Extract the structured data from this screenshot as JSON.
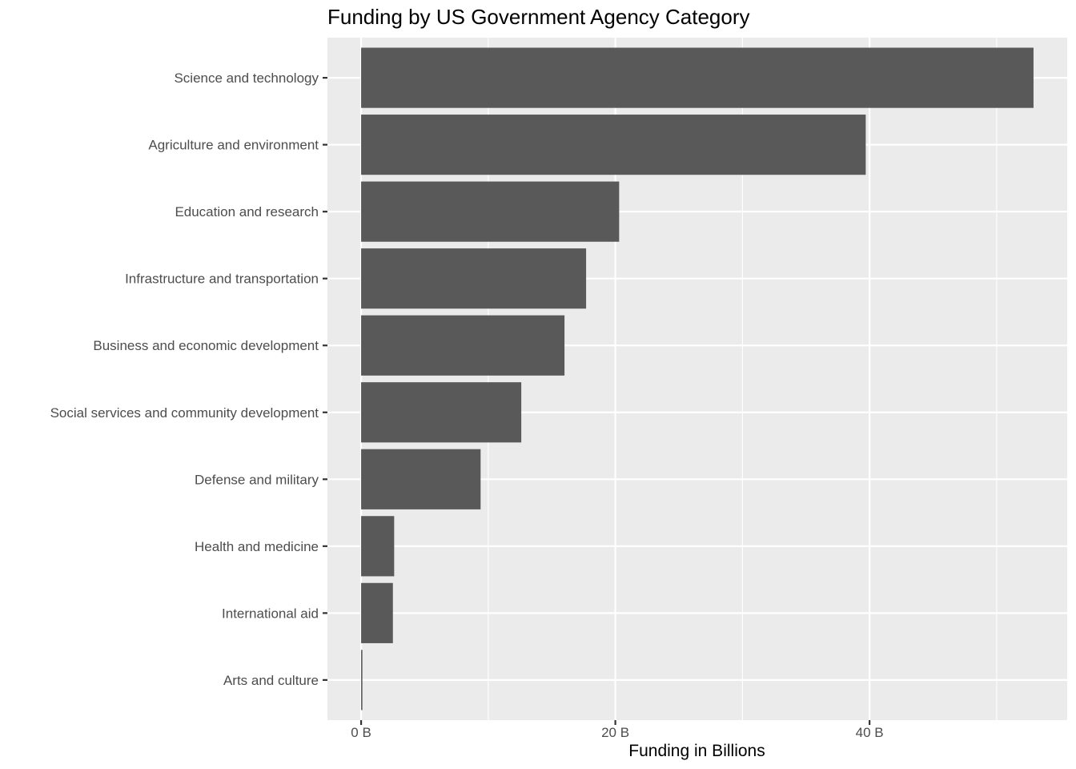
{
  "chart_data": {
    "type": "bar",
    "orientation": "horizontal",
    "title": "Funding by US Government Agency Category",
    "xlabel": "Funding in Billions",
    "ylabel": "",
    "categories": [
      "Science and technology",
      "Agriculture and environment",
      "Education and research",
      "Infrastructure and transportation",
      "Business and economic development",
      "Social services and community development",
      "Defense and military",
      "Health and medicine",
      "International aid",
      "Arts and culture"
    ],
    "values": [
      52.9,
      39.7,
      20.3,
      17.7,
      16.0,
      12.6,
      9.4,
      2.6,
      2.5,
      0.1
    ],
    "xlim": [
      -2.65,
      55.55
    ],
    "x_ticks": [
      0,
      20,
      40
    ],
    "x_tick_labels": [
      "0 B",
      "20 B",
      "40 B"
    ],
    "x_minor_ticks": [
      10,
      30,
      50
    ],
    "grid": true,
    "bar_color": "#595959",
    "panel_color": "#ebebeb",
    "grid_color": "#ffffff"
  }
}
